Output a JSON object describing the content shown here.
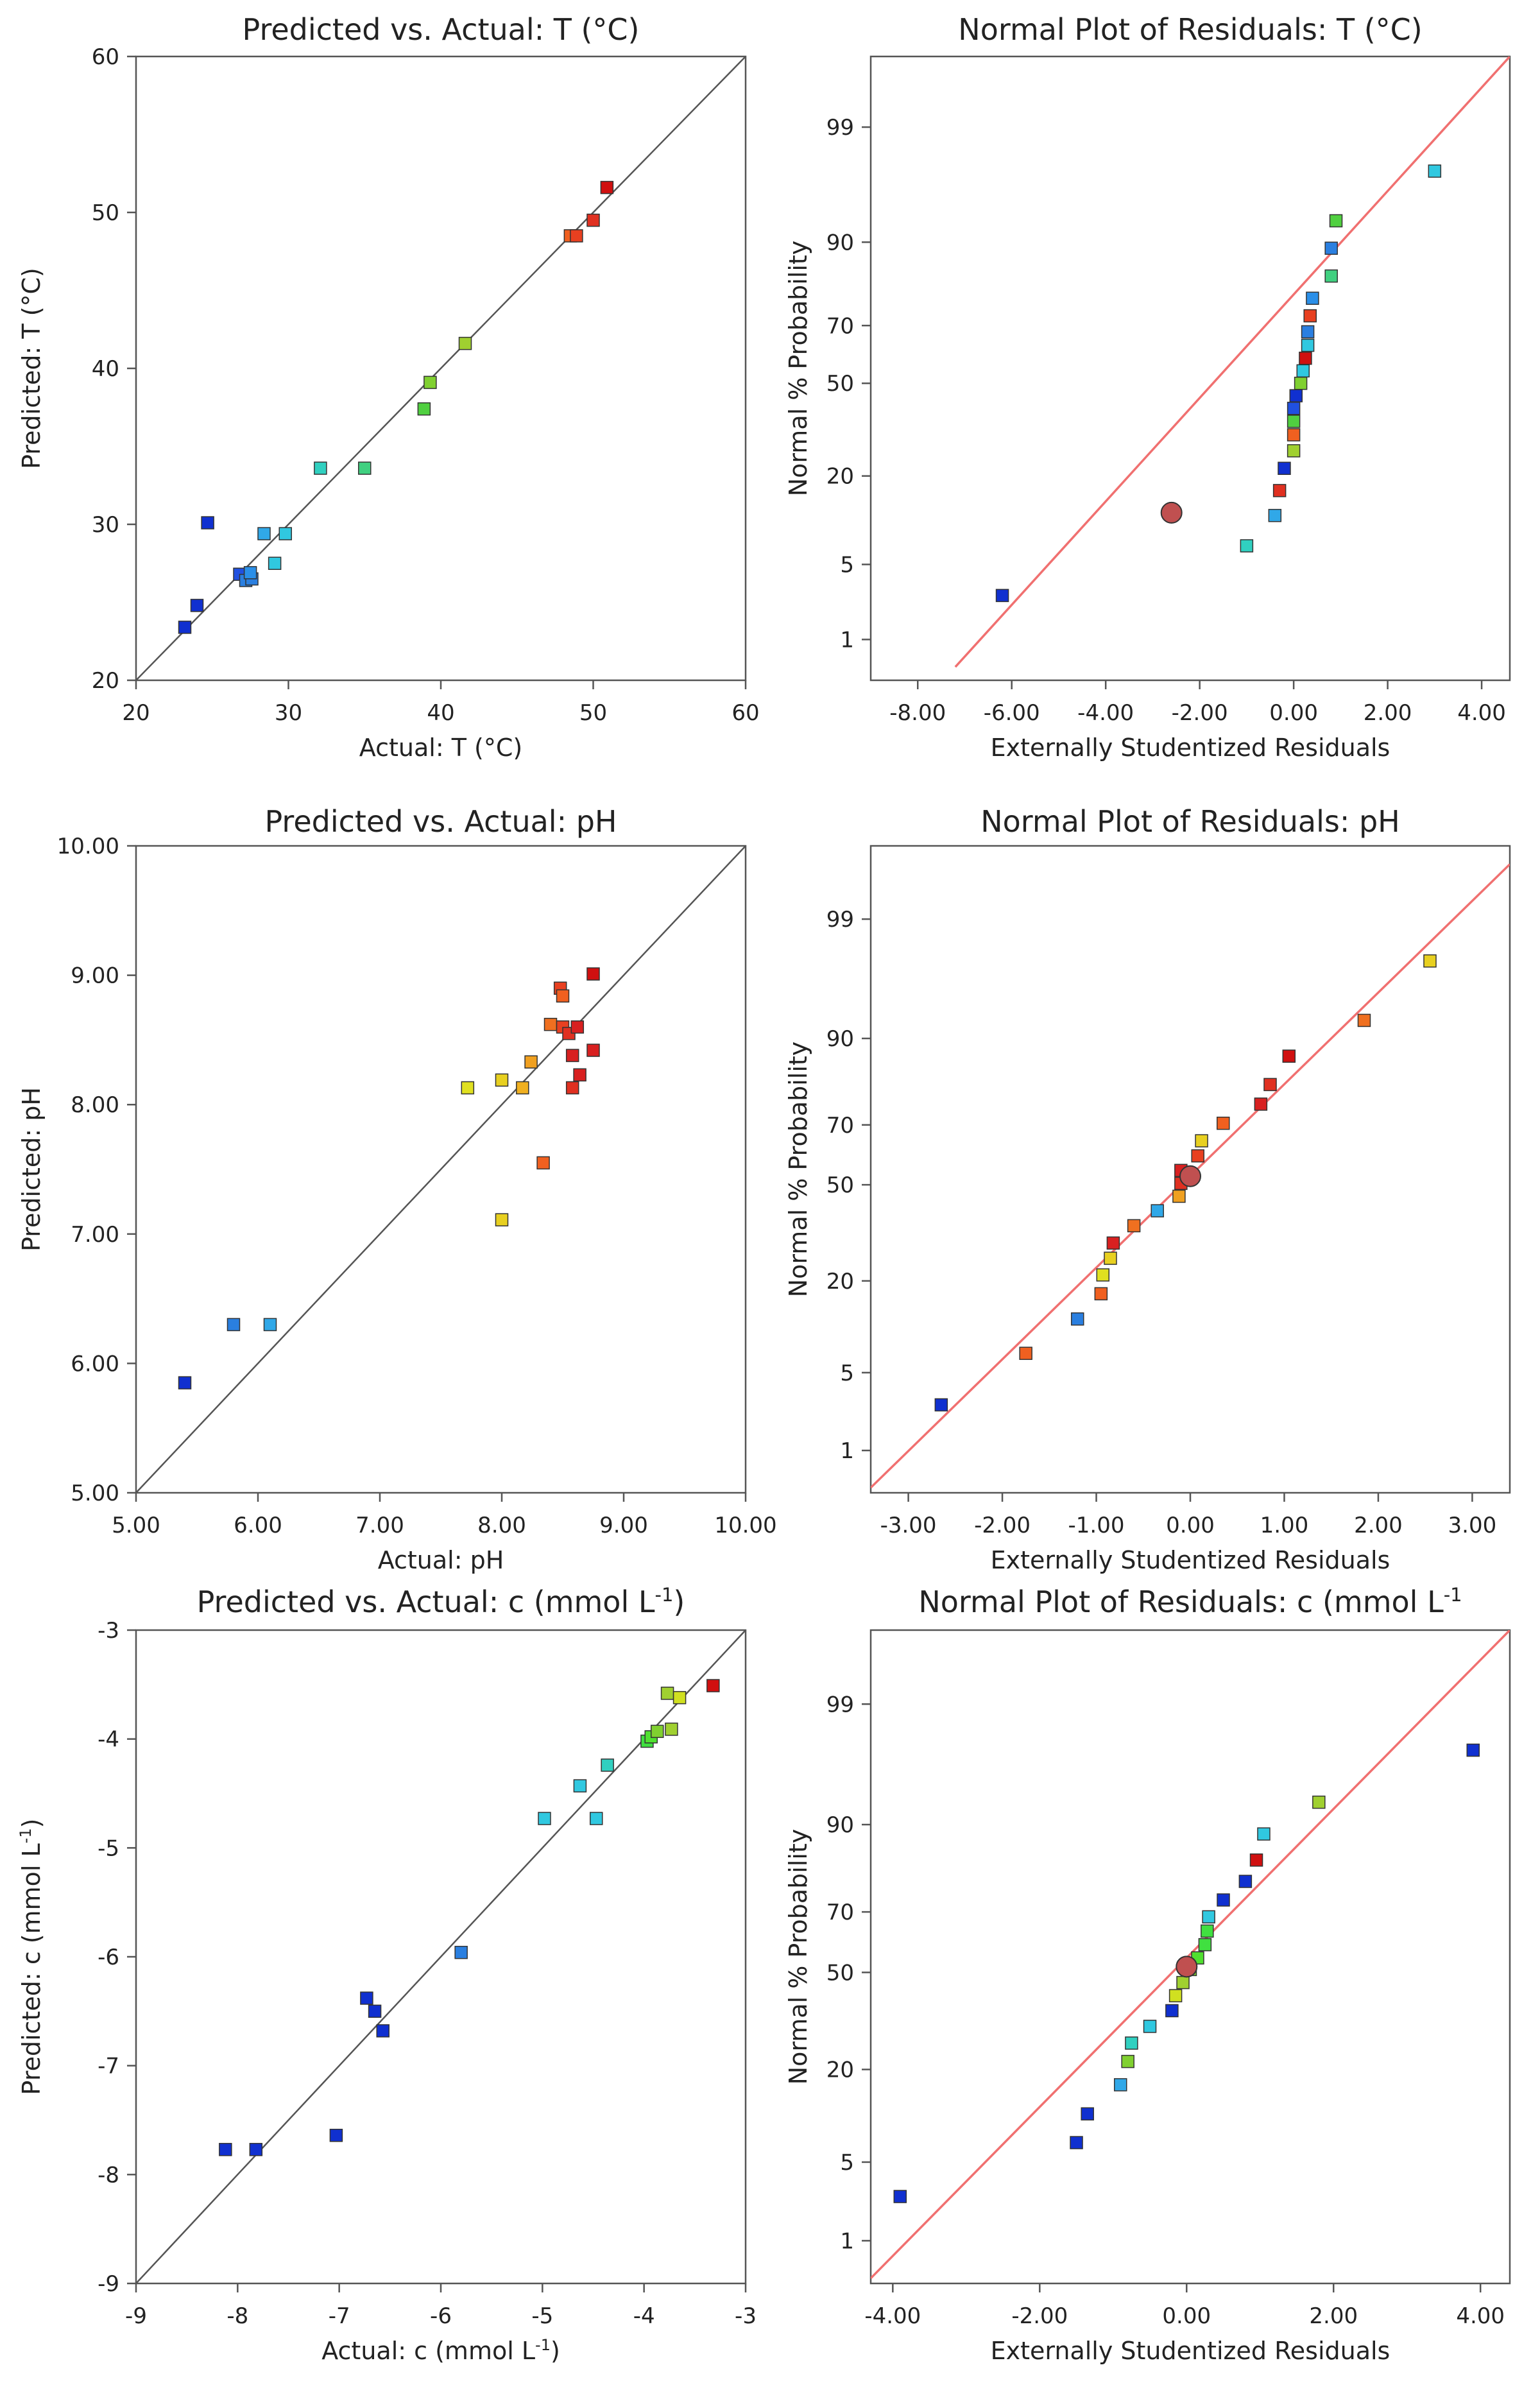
{
  "figure_caption": "",
  "chart_data": [
    {
      "id": "pva-T",
      "type": "scatter",
      "title": "Predicted vs. Actual: T (°C)",
      "xlabel": "Actual:  T (°C)",
      "ylabel": "Predicted: T (°C)",
      "xlim": [
        20,
        60
      ],
      "ylim": [
        20,
        60
      ],
      "xticks": [
        20,
        30,
        40,
        50,
        60
      ],
      "yticks": [
        20,
        30,
        40,
        50,
        60
      ],
      "xtick_labels": [
        "20",
        "30",
        "40",
        "50",
        "60"
      ],
      "ytick_labels": [
        "20",
        "30",
        "40",
        "50",
        "60"
      ],
      "reference_line": {
        "from": [
          20,
          20
        ],
        "to": [
          60,
          60
        ],
        "color": "#555555"
      },
      "points": [
        {
          "x": 23.2,
          "y": 23.4,
          "color": "#1030d0"
        },
        {
          "x": 24.0,
          "y": 24.8,
          "color": "#1030d0"
        },
        {
          "x": 24.7,
          "y": 30.1,
          "color": "#1030d0"
        },
        {
          "x": 26.8,
          "y": 26.8,
          "color": "#2050e0"
        },
        {
          "x": 27.2,
          "y": 26.4,
          "color": "#2a7fe0"
        },
        {
          "x": 27.6,
          "y": 26.5,
          "color": "#2a7fe0"
        },
        {
          "x": 27.5,
          "y": 26.9,
          "color": "#2a8fe8"
        },
        {
          "x": 28.4,
          "y": 29.4,
          "color": "#30a8e8"
        },
        {
          "x": 29.1,
          "y": 27.5,
          "color": "#30c8e0"
        },
        {
          "x": 29.8,
          "y": 29.4,
          "color": "#30c8e0"
        },
        {
          "x": 32.1,
          "y": 33.6,
          "color": "#30d0c0"
        },
        {
          "x": 35.0,
          "y": 33.6,
          "color": "#40d080"
        },
        {
          "x": 38.9,
          "y": 37.4,
          "color": "#50d040"
        },
        {
          "x": 39.3,
          "y": 39.1,
          "color": "#80d030"
        },
        {
          "x": 41.6,
          "y": 41.6,
          "color": "#a0d030"
        },
        {
          "x": 48.5,
          "y": 48.5,
          "color": "#f06020"
        },
        {
          "x": 48.9,
          "y": 48.5,
          "color": "#e84020"
        },
        {
          "x": 50.0,
          "y": 49.5,
          "color": "#e03020"
        },
        {
          "x": 50.9,
          "y": 51.6,
          "color": "#d01010"
        }
      ]
    },
    {
      "id": "normal-T",
      "type": "scatter",
      "title": "Normal Plot of Residuals: T (°C)",
      "xlabel": "Externally Studentized Residuals",
      "ylabel": "Normal % Probability",
      "xlim": [
        -9.0,
        4.6
      ],
      "xticks": [
        -8,
        -6,
        -4,
        -2,
        0,
        2,
        4
      ],
      "xtick_labels": [
        "-8.00",
        "-6.00",
        "-4.00",
        "-2.00",
        "0.00",
        "2.00",
        "4.00"
      ],
      "ytick_labels": [
        "1",
        "5",
        "20",
        "50",
        "70",
        "90",
        "99"
      ],
      "yticks": [
        1,
        5,
        20,
        50,
        70,
        90,
        99
      ],
      "reference_line": {
        "from": [
          -7.2,
          0.5
        ],
        "to": [
          4.6,
          99.85
        ],
        "color": "#f07070"
      },
      "highlighted_point": {
        "x": -2.6,
        "y": 12,
        "color": "#c05050"
      },
      "points": [
        {
          "x": -6.2,
          "y": 2.7,
          "color": "#1030d0"
        },
        {
          "x": -1.0,
          "y": 7.0,
          "color": "#30d0c0"
        },
        {
          "x": -0.4,
          "y": 11.5,
          "color": "#30a8e8"
        },
        {
          "x": -0.3,
          "y": 16.5,
          "color": "#e03020"
        },
        {
          "x": -0.2,
          "y": 22.0,
          "color": "#1030d0"
        },
        {
          "x": 0.0,
          "y": 27.0,
          "color": "#a0d030"
        },
        {
          "x": 0.0,
          "y": 32.0,
          "color": "#f06020"
        },
        {
          "x": 0.0,
          "y": 36.5,
          "color": "#50d040"
        },
        {
          "x": 0.0,
          "y": 41.0,
          "color": "#2050e0"
        },
        {
          "x": 0.05,
          "y": 45.5,
          "color": "#1030d0"
        },
        {
          "x": 0.15,
          "y": 50.0,
          "color": "#80d030"
        },
        {
          "x": 0.2,
          "y": 54.5,
          "color": "#30c8e0"
        },
        {
          "x": 0.25,
          "y": 59.0,
          "color": "#d01010"
        },
        {
          "x": 0.3,
          "y": 63.5,
          "color": "#30c8e0"
        },
        {
          "x": 0.3,
          "y": 68.0,
          "color": "#2a7fe0"
        },
        {
          "x": 0.35,
          "y": 73.0,
          "color": "#e84020"
        },
        {
          "x": 0.4,
          "y": 78.0,
          "color": "#2a8fe8"
        },
        {
          "x": 0.8,
          "y": 83.5,
          "color": "#40d080"
        },
        {
          "x": 0.8,
          "y": 89.0,
          "color": "#2a7fe0"
        },
        {
          "x": 0.9,
          "y": 93.0,
          "color": "#50d040"
        },
        {
          "x": 3.0,
          "y": 97.3,
          "color": "#30c8e0"
        }
      ]
    },
    {
      "id": "pva-pH",
      "type": "scatter",
      "title": "Predicted vs. Actual: pH",
      "xlabel": "Actual: pH",
      "ylabel": "Predicted: pH",
      "xlim": [
        5,
        10
      ],
      "ylim": [
        5,
        10
      ],
      "xticks": [
        5,
        6,
        7,
        8,
        9,
        10
      ],
      "yticks": [
        5,
        6,
        7,
        8,
        9,
        10
      ],
      "xtick_labels": [
        "5.00",
        "6.00",
        "7.00",
        "8.00",
        "9.00",
        "10.00"
      ],
      "ytick_labels": [
        "5.00",
        "6.00",
        "7.00",
        "8.00",
        "9.00",
        "10.00"
      ],
      "reference_line": {
        "from": [
          5,
          5
        ],
        "to": [
          10,
          10
        ],
        "color": "#555555"
      },
      "points": [
        {
          "x": 5.4,
          "y": 5.85,
          "color": "#1030d0"
        },
        {
          "x": 5.8,
          "y": 6.3,
          "color": "#2a7fe0"
        },
        {
          "x": 6.1,
          "y": 6.3,
          "color": "#30a8e8"
        },
        {
          "x": 7.72,
          "y": 8.13,
          "color": "#e0e020"
        },
        {
          "x": 8.0,
          "y": 7.11,
          "color": "#e8d020"
        },
        {
          "x": 8.0,
          "y": 8.19,
          "color": "#e8d020"
        },
        {
          "x": 8.17,
          "y": 8.13,
          "color": "#f0b020"
        },
        {
          "x": 8.24,
          "y": 8.33,
          "color": "#f0a020"
        },
        {
          "x": 8.34,
          "y": 7.55,
          "color": "#f06020"
        },
        {
          "x": 8.4,
          "y": 8.62,
          "color": "#f07020"
        },
        {
          "x": 8.48,
          "y": 8.9,
          "color": "#e84020"
        },
        {
          "x": 8.5,
          "y": 8.84,
          "color": "#f06020"
        },
        {
          "x": 8.5,
          "y": 8.6,
          "color": "#e84020"
        },
        {
          "x": 8.55,
          "y": 8.55,
          "color": "#e03020"
        },
        {
          "x": 8.58,
          "y": 8.13,
          "color": "#e03020"
        },
        {
          "x": 8.58,
          "y": 8.38,
          "color": "#d82020"
        },
        {
          "x": 8.62,
          "y": 8.6,
          "color": "#d82020"
        },
        {
          "x": 8.64,
          "y": 8.23,
          "color": "#d82020"
        },
        {
          "x": 8.75,
          "y": 8.42,
          "color": "#d82020"
        },
        {
          "x": 8.75,
          "y": 9.01,
          "color": "#d01010"
        }
      ]
    },
    {
      "id": "normal-pH",
      "type": "scatter",
      "title": "Normal Plot of Residuals: pH",
      "xlabel": "Externally Studentized Residuals",
      "ylabel": "Normal % Probability",
      "xlim": [
        -3.4,
        3.4
      ],
      "xticks": [
        -3,
        -2,
        -1,
        0,
        1,
        2,
        3
      ],
      "xtick_labels": [
        "-3.00",
        "-2.00",
        "-1.00",
        "0.00",
        "1.00",
        "2.00",
        "3.00"
      ],
      "ytick_labels": [
        "1",
        "5",
        "20",
        "50",
        "70",
        "90",
        "99"
      ],
      "yticks": [
        1,
        5,
        20,
        50,
        70,
        90,
        99
      ],
      "reference_line": {
        "from": [
          -3.4,
          0.4
        ],
        "to": [
          3.4,
          99.75
        ],
        "color": "#f07070"
      },
      "highlighted_point": {
        "x": 0.0,
        "y": 53,
        "color": "#c05050"
      },
      "points": [
        {
          "x": -2.65,
          "y": 2.7,
          "color": "#1030d0"
        },
        {
          "x": -1.75,
          "y": 7.0,
          "color": "#f06020"
        },
        {
          "x": -1.2,
          "y": 12.0,
          "color": "#2a7fe0"
        },
        {
          "x": -0.95,
          "y": 17.0,
          "color": "#f06020"
        },
        {
          "x": -0.93,
          "y": 21.5,
          "color": "#e0e020"
        },
        {
          "x": -0.85,
          "y": 26.0,
          "color": "#e8d020"
        },
        {
          "x": -0.82,
          "y": 30.5,
          "color": "#d82020"
        },
        {
          "x": -0.6,
          "y": 36.0,
          "color": "#f07020"
        },
        {
          "x": -0.35,
          "y": 41.0,
          "color": "#30a8e8"
        },
        {
          "x": -0.12,
          "y": 46.0,
          "color": "#f0a020"
        },
        {
          "x": -0.1,
          "y": 50.5,
          "color": "#e03020"
        },
        {
          "x": -0.1,
          "y": 55.0,
          "color": "#d82020"
        },
        {
          "x": 0.08,
          "y": 60.0,
          "color": "#e84020"
        },
        {
          "x": 0.12,
          "y": 65.0,
          "color": "#e8d020"
        },
        {
          "x": 0.35,
          "y": 70.5,
          "color": "#f06020"
        },
        {
          "x": 0.75,
          "y": 76.0,
          "color": "#d82020"
        },
        {
          "x": 0.85,
          "y": 81.0,
          "color": "#e03020"
        },
        {
          "x": 1.05,
          "y": 87.0,
          "color": "#d01010"
        },
        {
          "x": 1.85,
          "y": 92.5,
          "color": "#f07020"
        },
        {
          "x": 2.55,
          "y": 97.5,
          "color": "#e8d020"
        }
      ]
    },
    {
      "id": "pva-c",
      "type": "scatter",
      "title": "Predicted vs. Actual: c (mmol L",
      "title_sup": "-1",
      "title_end": ")",
      "xlabel": "Actual:  c (mmol L",
      "xlabel_sup": "-1",
      "xlabel_end": ")",
      "ylabel": "Predicted:  c (mmol L",
      "ylabel_sup": "-1",
      "ylabel_end": ")",
      "xlim": [
        -9,
        -3
      ],
      "ylim": [
        -9,
        -3
      ],
      "xticks": [
        -9,
        -8,
        -7,
        -6,
        -5,
        -4,
        -3
      ],
      "yticks": [
        -9,
        -8,
        -7,
        -6,
        -5,
        -4,
        -3
      ],
      "xtick_labels": [
        "-9",
        "-8",
        "-7",
        "-6",
        "-5",
        "-4",
        "-3"
      ],
      "ytick_labels": [
        "-9",
        "-8",
        "-7",
        "-6",
        "-5",
        "-4",
        "-3"
      ],
      "reference_line": {
        "from": [
          -9,
          -9
        ],
        "to": [
          -3,
          -3
        ],
        "color": "#555555"
      },
      "points": [
        {
          "x": -8.12,
          "y": -7.77,
          "color": "#1030d0"
        },
        {
          "x": -7.82,
          "y": -7.77,
          "color": "#1030d0"
        },
        {
          "x": -7.03,
          "y": -7.64,
          "color": "#1030d0"
        },
        {
          "x": -6.73,
          "y": -6.38,
          "color": "#1030d0"
        },
        {
          "x": -6.65,
          "y": -6.5,
          "color": "#1030d0"
        },
        {
          "x": -6.57,
          "y": -6.68,
          "color": "#1030d0"
        },
        {
          "x": -5.8,
          "y": -5.96,
          "color": "#2a7fe0"
        },
        {
          "x": -4.98,
          "y": -4.73,
          "color": "#30c8e0"
        },
        {
          "x": -4.63,
          "y": -4.43,
          "color": "#30c8e0"
        },
        {
          "x": -4.47,
          "y": -4.73,
          "color": "#30c8e0"
        },
        {
          "x": -4.36,
          "y": -4.24,
          "color": "#30d0c0"
        },
        {
          "x": -3.97,
          "y": -4.02,
          "color": "#40e040"
        },
        {
          "x": -3.93,
          "y": -3.98,
          "color": "#50e030"
        },
        {
          "x": -3.87,
          "y": -3.93,
          "color": "#80d030"
        },
        {
          "x": -3.77,
          "y": -3.58,
          "color": "#a0d030"
        },
        {
          "x": -3.73,
          "y": -3.91,
          "color": "#a0d030"
        },
        {
          "x": -3.65,
          "y": -3.62,
          "color": "#d0e020"
        },
        {
          "x": -3.32,
          "y": -3.51,
          "color": "#d01010"
        }
      ]
    },
    {
      "id": "normal-c",
      "type": "scatter",
      "title": "Normal Plot of Residuals:  c (mmol L",
      "title_sup": "-1",
      "title_end": "",
      "xlabel": "Externally Studentized Residuals",
      "ylabel": "Normal % Probability",
      "xlim": [
        -4.3,
        4.4
      ],
      "xticks": [
        -4,
        -2,
        0,
        2,
        4
      ],
      "xtick_labels": [
        "-4.00",
        "-2.00",
        "0.00",
        "2.00",
        "4.00"
      ],
      "ytick_labels": [
        "1",
        "5",
        "20",
        "50",
        "70",
        "90",
        "99"
      ],
      "yticks": [
        1,
        5,
        20,
        50,
        70,
        90,
        99
      ],
      "reference_line": {
        "from": [
          -4.3,
          0.4
        ],
        "to": [
          4.4,
          99.85
        ],
        "color": "#f07070"
      },
      "highlighted_point": {
        "x": 0.0,
        "y": 52,
        "color": "#c05050"
      },
      "points": [
        {
          "x": -3.9,
          "y": 2.6,
          "color": "#1030d0"
        },
        {
          "x": -1.5,
          "y": 7.0,
          "color": "#1030d0"
        },
        {
          "x": -1.35,
          "y": 11.0,
          "color": "#1030d0"
        },
        {
          "x": -0.9,
          "y": 16.5,
          "color": "#30a8e8"
        },
        {
          "x": -0.8,
          "y": 22.0,
          "color": "#80d030"
        },
        {
          "x": -0.75,
          "y": 27.0,
          "color": "#30d0c0"
        },
        {
          "x": -0.5,
          "y": 32.0,
          "color": "#30c8e0"
        },
        {
          "x": -0.2,
          "y": 37.0,
          "color": "#1030d0"
        },
        {
          "x": -0.15,
          "y": 42.0,
          "color": "#d0e020"
        },
        {
          "x": -0.05,
          "y": 46.5,
          "color": "#a0d030"
        },
        {
          "x": 0.05,
          "y": 51.0,
          "color": "#80d030"
        },
        {
          "x": 0.15,
          "y": 55.0,
          "color": "#50e030"
        },
        {
          "x": 0.25,
          "y": 59.5,
          "color": "#40e040"
        },
        {
          "x": 0.28,
          "y": 64.0,
          "color": "#40e040"
        },
        {
          "x": 0.3,
          "y": 68.5,
          "color": "#30c8e0"
        },
        {
          "x": 0.5,
          "y": 73.5,
          "color": "#1030d0"
        },
        {
          "x": 0.8,
          "y": 78.5,
          "color": "#1030d0"
        },
        {
          "x": 0.95,
          "y": 83.5,
          "color": "#d01010"
        },
        {
          "x": 1.05,
          "y": 88.5,
          "color": "#30c8e0"
        },
        {
          "x": 1.8,
          "y": 93.0,
          "color": "#a0d030"
        },
        {
          "x": 3.9,
          "y": 97.3,
          "color": "#1030d0"
        }
      ]
    }
  ]
}
